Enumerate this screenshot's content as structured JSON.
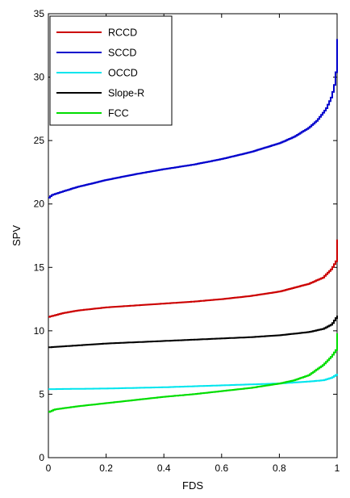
{
  "chart_data": {
    "type": "line",
    "xlabel": "FDS",
    "ylabel": "SPV",
    "xlim": [
      0,
      1
    ],
    "ylim": [
      0,
      35
    ],
    "xticks": [
      0,
      0.2,
      0.4,
      0.6,
      0.8,
      1
    ],
    "xtick_labels": [
      "0",
      "0.2",
      "0.4",
      "0.6",
      "0.8",
      "1"
    ],
    "yticks": [
      0,
      5,
      10,
      15,
      20,
      25,
      30,
      35
    ],
    "ytick_labels": [
      "0",
      "5",
      "10",
      "15",
      "20",
      "25",
      "30",
      "35"
    ],
    "grid": false,
    "legend_position": "top-left",
    "series": [
      {
        "name": "RCCD",
        "color": "#cc0000",
        "x": [
          0,
          0.05,
          0.1,
          0.2,
          0.3,
          0.4,
          0.5,
          0.6,
          0.7,
          0.8,
          0.85,
          0.9,
          0.95,
          0.98,
          0.995,
          1
        ],
        "y": [
          11.1,
          11.4,
          11.6,
          11.85,
          12.0,
          12.15,
          12.3,
          12.5,
          12.75,
          13.1,
          13.4,
          13.7,
          14.2,
          14.9,
          15.5,
          17.2
        ]
      },
      {
        "name": "SCCD",
        "color": "#0000cc",
        "x": [
          0,
          0.01,
          0.05,
          0.1,
          0.2,
          0.3,
          0.4,
          0.5,
          0.6,
          0.7,
          0.8,
          0.85,
          0.9,
          0.93,
          0.96,
          0.98,
          0.99,
          0.995,
          1
        ],
        "y": [
          20.5,
          20.7,
          21.0,
          21.35,
          21.9,
          22.35,
          22.75,
          23.1,
          23.55,
          24.1,
          24.8,
          25.3,
          26.0,
          26.6,
          27.5,
          28.5,
          29.5,
          30.5,
          33.0
        ]
      },
      {
        "name": "OCCD",
        "color": "#00e5ee",
        "x": [
          0,
          0.2,
          0.4,
          0.6,
          0.8,
          0.9,
          0.95,
          0.98,
          1
        ],
        "y": [
          5.4,
          5.45,
          5.55,
          5.7,
          5.85,
          6.0,
          6.1,
          6.3,
          6.6
        ]
      },
      {
        "name": "Slope-R",
        "color": "#000000",
        "x": [
          0,
          0.1,
          0.2,
          0.3,
          0.4,
          0.5,
          0.6,
          0.7,
          0.8,
          0.9,
          0.95,
          0.98,
          1
        ],
        "y": [
          8.7,
          8.85,
          9.0,
          9.1,
          9.2,
          9.3,
          9.4,
          9.5,
          9.65,
          9.9,
          10.15,
          10.5,
          11.2
        ]
      },
      {
        "name": "FCC",
        "color": "#00dd00",
        "x": [
          0,
          0.02,
          0.1,
          0.2,
          0.3,
          0.4,
          0.5,
          0.6,
          0.7,
          0.8,
          0.85,
          0.9,
          0.95,
          0.98,
          0.995,
          1
        ],
        "y": [
          3.6,
          3.8,
          4.05,
          4.3,
          4.55,
          4.8,
          5.0,
          5.25,
          5.5,
          5.85,
          6.1,
          6.5,
          7.3,
          8.0,
          8.5,
          9.8
        ]
      }
    ]
  }
}
